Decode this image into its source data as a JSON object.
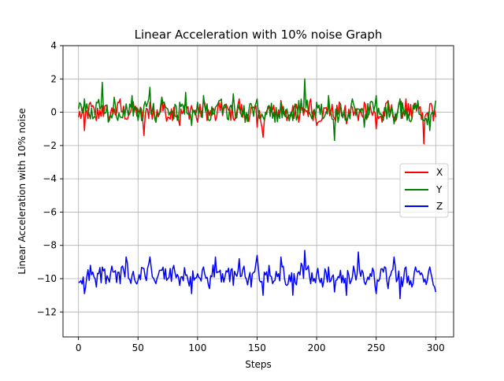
{
  "chart_data": {
    "type": "line",
    "title": "Linear Acceleration with 10% noise Graph",
    "xlabel": "Steps",
    "ylabel": "Linear Acceleration with 10% noise",
    "xlim": [
      -13,
      315
    ],
    "ylim": [
      -13.5,
      4
    ],
    "xticks": [
      0,
      50,
      100,
      150,
      200,
      250,
      300
    ],
    "yticks": [
      4,
      2,
      0,
      -2,
      -4,
      -6,
      -8,
      -10,
      -12
    ],
    "grid": true,
    "legend_position": "center-right",
    "series": [
      {
        "name": "X",
        "color": "#ff0000",
        "center": 0.0,
        "x": [
          0,
          5,
          10,
          15,
          20,
          25,
          30,
          35,
          40,
          45,
          50,
          55,
          60,
          65,
          70,
          75,
          80,
          85,
          90,
          95,
          100,
          105,
          110,
          115,
          120,
          125,
          130,
          135,
          140,
          145,
          150,
          155,
          160,
          165,
          170,
          175,
          180,
          185,
          190,
          195,
          200,
          205,
          210,
          215,
          220,
          225,
          230,
          235,
          240,
          245,
          250,
          255,
          260,
          265,
          270,
          275,
          280,
          285,
          290,
          295,
          300
        ],
        "y": [
          -0.3,
          -1.1,
          0.6,
          -0.5,
          0.4,
          -0.2,
          0.2,
          0.8,
          -0.4,
          0.5,
          0.2,
          -1.4,
          0.6,
          -0.6,
          0.9,
          -0.3,
          0.3,
          -0.8,
          0.5,
          0.4,
          -0.6,
          0.7,
          -0.2,
          -0.5,
          0.6,
          0.3,
          -0.4,
          0.8,
          -0.6,
          0.3,
          -0.9,
          -1.5,
          0.4,
          -0.3,
          0.7,
          -0.5,
          0.4,
          -0.6,
          0.2,
          0.8,
          -0.8,
          -0.3,
          0.6,
          -0.4,
          0.5,
          -0.7,
          0.3,
          -0.5,
          0.6,
          0.4,
          -1.0,
          -0.6,
          0.7,
          -0.3,
          0.5,
          0.8,
          -0.4,
          0.6,
          -1.9,
          0.5,
          -0.3
        ]
      },
      {
        "name": "Y",
        "color": "#008000",
        "center": 0.0,
        "x": [
          0,
          5,
          10,
          15,
          20,
          25,
          30,
          35,
          40,
          45,
          50,
          55,
          60,
          65,
          70,
          75,
          80,
          85,
          90,
          95,
          100,
          105,
          110,
          115,
          120,
          125,
          130,
          135,
          140,
          145,
          150,
          155,
          160,
          165,
          170,
          175,
          180,
          185,
          190,
          195,
          200,
          205,
          210,
          215,
          220,
          225,
          230,
          235,
          240,
          245,
          250,
          255,
          260,
          265,
          270,
          275,
          280,
          285,
          290,
          295,
          300
        ],
        "y": [
          0.2,
          0.8,
          -0.4,
          0.6,
          1.8,
          -0.6,
          0.9,
          -0.3,
          0.5,
          1.0,
          -0.5,
          0.4,
          1.5,
          -0.6,
          0.9,
          0.2,
          -0.4,
          0.6,
          1.2,
          -0.8,
          0.6,
          1.0,
          -0.5,
          0.3,
          0.8,
          -0.4,
          1.1,
          0.2,
          -0.6,
          0.5,
          0.8,
          -0.3,
          0.4,
          -0.6,
          0.6,
          0.2,
          -0.5,
          0.7,
          2.0,
          -0.2,
          0.6,
          -0.4,
          1.0,
          -1.7,
          0.5,
          -0.5,
          0.8,
          0.2,
          -0.9,
          0.6,
          1.0,
          -0.3,
          0.6,
          -0.7,
          0.8,
          0.2,
          -0.4,
          0.7,
          -0.5,
          -1.1,
          0.7
        ]
      },
      {
        "name": "Z",
        "color": "#0000ff",
        "center": -9.8,
        "x": [
          0,
          5,
          10,
          15,
          20,
          25,
          30,
          35,
          40,
          45,
          50,
          55,
          60,
          65,
          70,
          75,
          80,
          85,
          90,
          95,
          100,
          105,
          110,
          115,
          120,
          125,
          130,
          135,
          140,
          145,
          150,
          155,
          160,
          165,
          170,
          175,
          180,
          185,
          190,
          195,
          200,
          205,
          210,
          215,
          220,
          225,
          230,
          235,
          240,
          245,
          250,
          255,
          260,
          265,
          270,
          275,
          280,
          285,
          290,
          295,
          300
        ],
        "y": [
          -10.2,
          -10.9,
          -9.2,
          -10.5,
          -9.3,
          -10.0,
          -9.6,
          -10.3,
          -8.7,
          -9.8,
          -10.1,
          -9.4,
          -8.7,
          -10.3,
          -9.5,
          -10.0,
          -9.2,
          -10.4,
          -9.8,
          -10.9,
          -9.7,
          -9.3,
          -10.6,
          -8.7,
          -10.2,
          -9.6,
          -10.4,
          -8.8,
          -9.9,
          -10.5,
          -8.6,
          -11.0,
          -9.2,
          -10.1,
          -8.7,
          -10.4,
          -11.0,
          -9.6,
          -8.3,
          -10.3,
          -9.7,
          -10.5,
          -9.3,
          -10.8,
          -9.5,
          -11.0,
          -9.9,
          -8.4,
          -10.2,
          -9.7,
          -10.9,
          -9.4,
          -10.6,
          -8.7,
          -11.2,
          -9.3,
          -10.5,
          -9.6,
          -10.2,
          -9.3,
          -10.8
        ]
      }
    ]
  }
}
